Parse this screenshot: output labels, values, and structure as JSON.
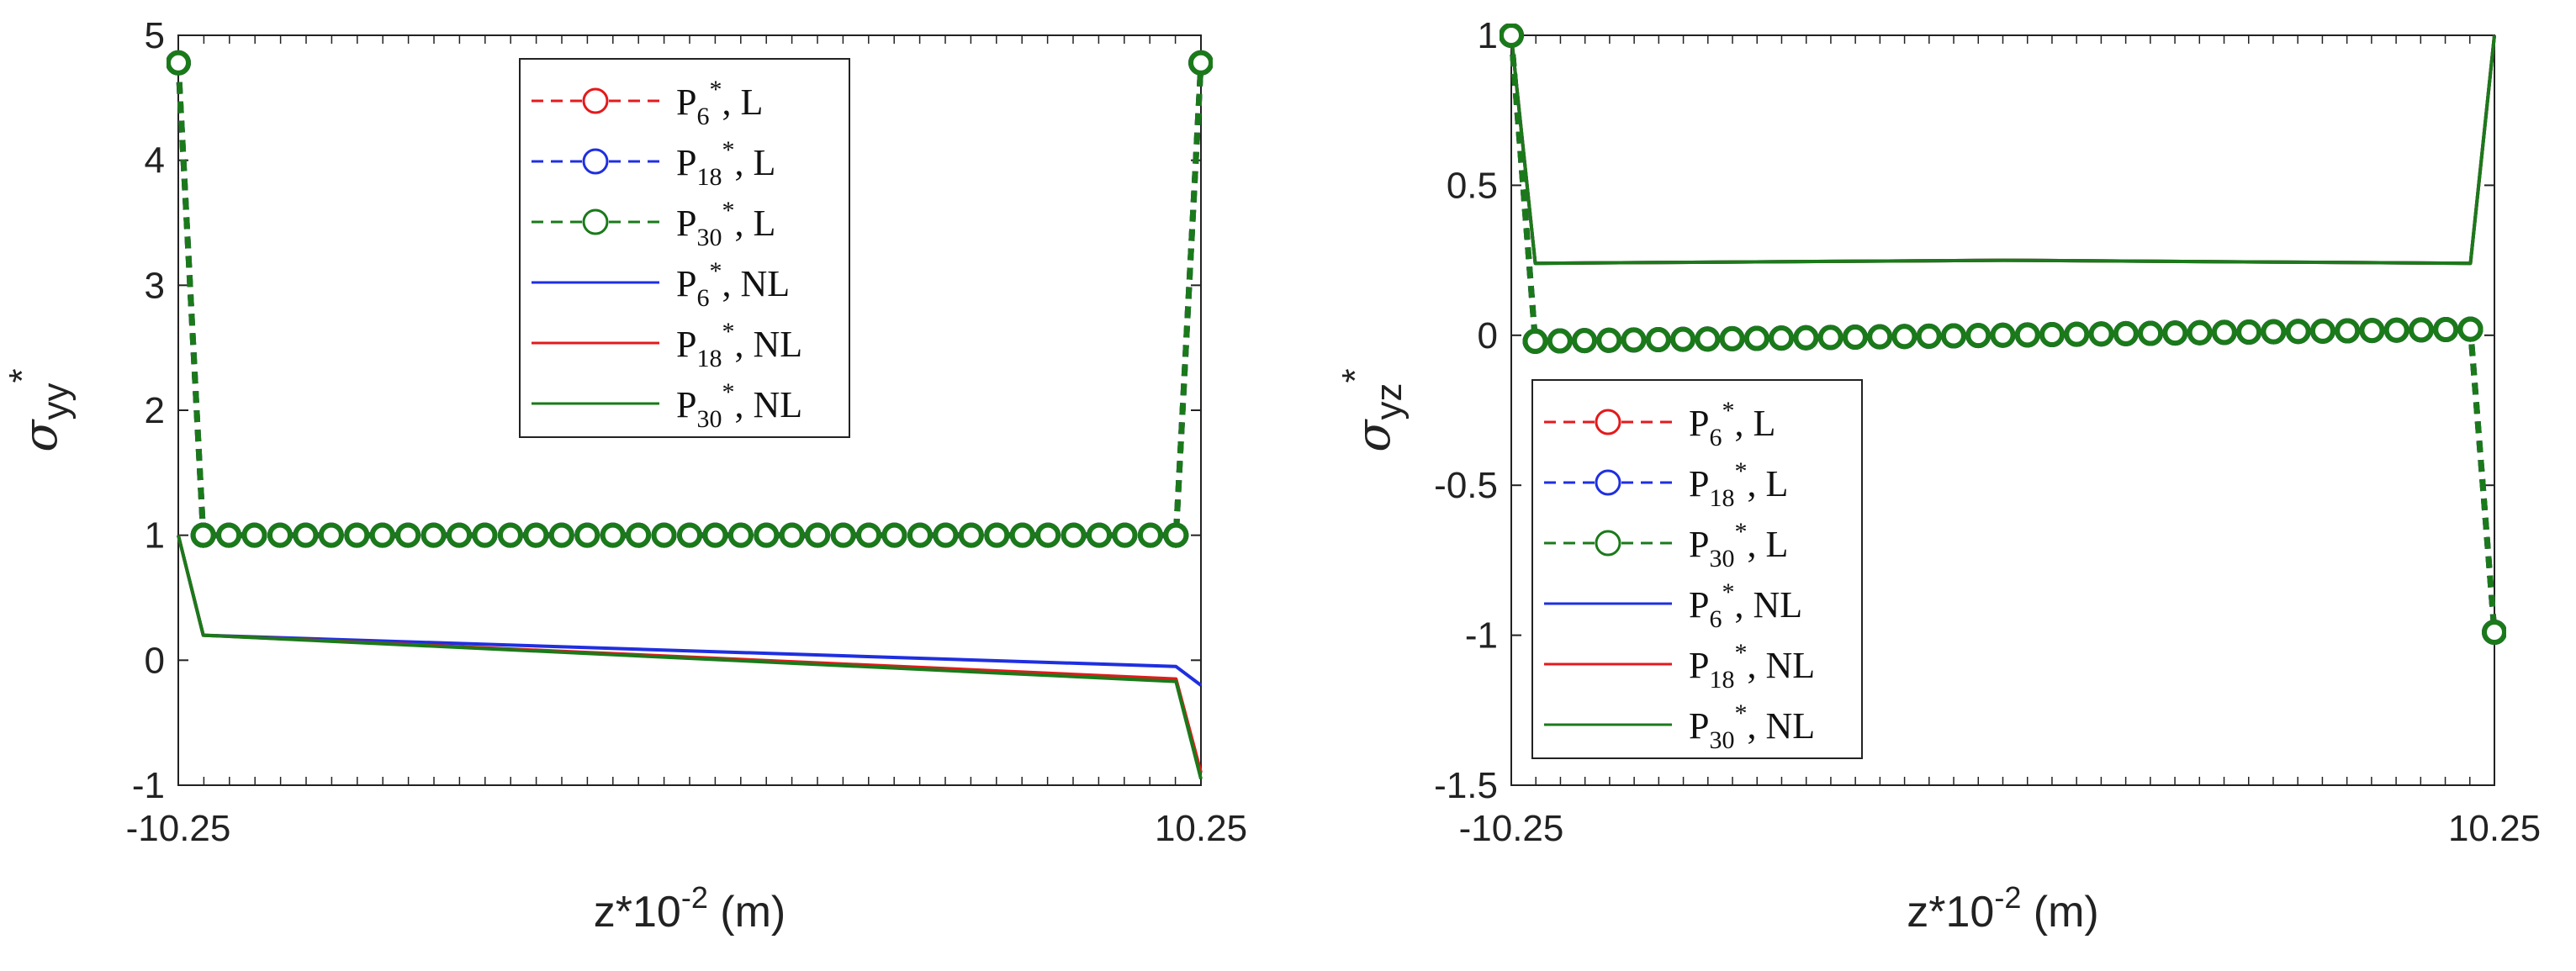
{
  "chart_data": [
    {
      "type": "line",
      "xlabel": "z*10",
      "xlabel_exp": "-2",
      "xlabel_unit": " (m)",
      "ylabel": {
        "symbol": "σ",
        "sub": "yy",
        "sup": "*"
      },
      "xlim": [
        -10.25,
        10.25
      ],
      "ylim": [
        -1,
        5
      ],
      "xticks": [
        -10.25,
        10.25
      ],
      "yticks": [
        -1,
        0,
        1,
        2,
        3,
        4,
        5
      ],
      "legend_position": "top-center",
      "series": [
        {
          "name": "P6*, L",
          "label_base": "P",
          "label_sub": "6",
          "label_sup": "*",
          "label_tail": ", L",
          "color": "#e31a1c",
          "style": "dashed",
          "marker": "circle",
          "points": [
            [
              -10.25,
              4.78
            ],
            [
              -9.75,
              1.0
            ],
            [
              9.75,
              1.0
            ],
            [
              10.25,
              4.78
            ]
          ]
        },
        {
          "name": "P18*, L",
          "label_base": "P",
          "label_sub": "18",
          "label_sup": "*",
          "label_tail": ", L",
          "color": "#1f2fe0",
          "style": "dashed",
          "marker": "circle",
          "points": [
            [
              -10.25,
              4.78
            ],
            [
              -9.75,
              1.0
            ],
            [
              9.75,
              1.0
            ],
            [
              10.25,
              4.78
            ]
          ]
        },
        {
          "name": "P30*, L",
          "label_base": "P",
          "label_sub": "30",
          "label_sup": "*",
          "label_tail": ", L",
          "color": "#1a7a1a",
          "style": "dashed",
          "marker": "circle",
          "points": [
            [
              -10.25,
              4.78
            ],
            [
              -9.75,
              1.0
            ],
            [
              9.75,
              1.0
            ],
            [
              10.25,
              4.78
            ]
          ]
        },
        {
          "name": "P6*, NL",
          "label_base": "P",
          "label_sub": "6",
          "label_sup": "*",
          "label_tail": ", NL",
          "color": "#1f2fe0",
          "style": "solid",
          "marker": "none",
          "points": [
            [
              -10.25,
              1.0
            ],
            [
              -9.75,
              0.2
            ],
            [
              9.75,
              -0.05
            ],
            [
              10.25,
              -0.2
            ]
          ]
        },
        {
          "name": "P18*, NL",
          "label_base": "P",
          "label_sub": "18",
          "label_sup": "*",
          "label_tail": ", NL",
          "color": "#e31a1c",
          "style": "solid",
          "marker": "none",
          "points": [
            [
              -10.25,
              1.0
            ],
            [
              -9.75,
              0.2
            ],
            [
              9.75,
              -0.15
            ],
            [
              10.25,
              -0.9
            ]
          ]
        },
        {
          "name": "P30*, NL",
          "label_base": "P",
          "label_sub": "30",
          "label_sup": "*",
          "label_tail": ", NL",
          "color": "#1a7a1a",
          "style": "solid",
          "marker": "none",
          "points": [
            [
              -10.25,
              1.0
            ],
            [
              -9.75,
              0.2
            ],
            [
              9.75,
              -0.17
            ],
            [
              10.25,
              -0.95
            ]
          ]
        }
      ],
      "marker_rows": [
        {
          "y": 1.0,
          "x_start": -9.75,
          "x_end": 9.75,
          "count": 39
        }
      ]
    },
    {
      "type": "line",
      "xlabel": "z*10",
      "xlabel_exp": "-2",
      "xlabel_unit": " (m)",
      "ylabel": {
        "symbol": "σ",
        "sub": "yz",
        "sup": "*"
      },
      "xlim": [
        -10.25,
        10.25
      ],
      "ylim": [
        -1.5,
        1
      ],
      "xticks": [
        -10.25,
        10.25
      ],
      "yticks": [
        -1.5,
        -1,
        -0.5,
        0,
        0.5,
        1
      ],
      "legend_position": "bottom-left",
      "series": [
        {
          "name": "P6*, L",
          "label_base": "P",
          "label_sub": "6",
          "label_sup": "*",
          "label_tail": ", L",
          "color": "#e31a1c",
          "style": "dashed",
          "marker": "circle",
          "points": [
            [
              -10.25,
              1.0
            ],
            [
              -9.75,
              -0.02
            ],
            [
              9.75,
              0.02
            ],
            [
              10.25,
              -0.99
            ]
          ]
        },
        {
          "name": "P18*, L",
          "label_base": "P",
          "label_sub": "18",
          "label_sup": "*",
          "label_tail": ", L",
          "color": "#1f2fe0",
          "style": "dashed",
          "marker": "circle",
          "points": [
            [
              -10.25,
              1.0
            ],
            [
              -9.75,
              -0.02
            ],
            [
              9.75,
              0.02
            ],
            [
              10.25,
              -0.99
            ]
          ]
        },
        {
          "name": "P30*, L",
          "label_base": "P",
          "label_sub": "30",
          "label_sup": "*",
          "label_tail": ", L",
          "color": "#1a7a1a",
          "style": "dashed",
          "marker": "circle",
          "points": [
            [
              -10.25,
              1.0
            ],
            [
              -9.75,
              -0.02
            ],
            [
              9.75,
              0.02
            ],
            [
              10.25,
              -0.99
            ]
          ]
        },
        {
          "name": "P6*, NL",
          "label_base": "P",
          "label_sub": "6",
          "label_sup": "*",
          "label_tail": ", NL",
          "color": "#1f2fe0",
          "style": "solid",
          "marker": "none",
          "points": [
            [
              -10.25,
              1.0
            ],
            [
              -9.75,
              0.24
            ],
            [
              0,
              0.25
            ],
            [
              9.75,
              0.24
            ],
            [
              10.25,
              1.0
            ]
          ]
        },
        {
          "name": "P18*, NL",
          "label_base": "P",
          "label_sub": "18",
          "label_sup": "*",
          "label_tail": ", NL",
          "color": "#e31a1c",
          "style": "solid",
          "marker": "none",
          "points": [
            [
              -10.25,
              1.0
            ],
            [
              -9.75,
              0.24
            ],
            [
              0,
              0.25
            ],
            [
              9.75,
              0.24
            ],
            [
              10.25,
              1.0
            ]
          ]
        },
        {
          "name": "P30*, NL",
          "label_base": "P",
          "label_sub": "30",
          "label_sup": "*",
          "label_tail": ", NL",
          "color": "#1a7a1a",
          "style": "solid",
          "marker": "none",
          "points": [
            [
              -10.25,
              1.0
            ],
            [
              -9.75,
              0.24
            ],
            [
              0,
              0.25
            ],
            [
              9.75,
              0.24
            ],
            [
              10.25,
              1.0
            ]
          ]
        }
      ],
      "marker_rows": [
        {
          "y_start": -0.02,
          "y_end": 0.02,
          "x_start": -9.75,
          "x_end": 9.75,
          "count": 39
        }
      ]
    }
  ]
}
